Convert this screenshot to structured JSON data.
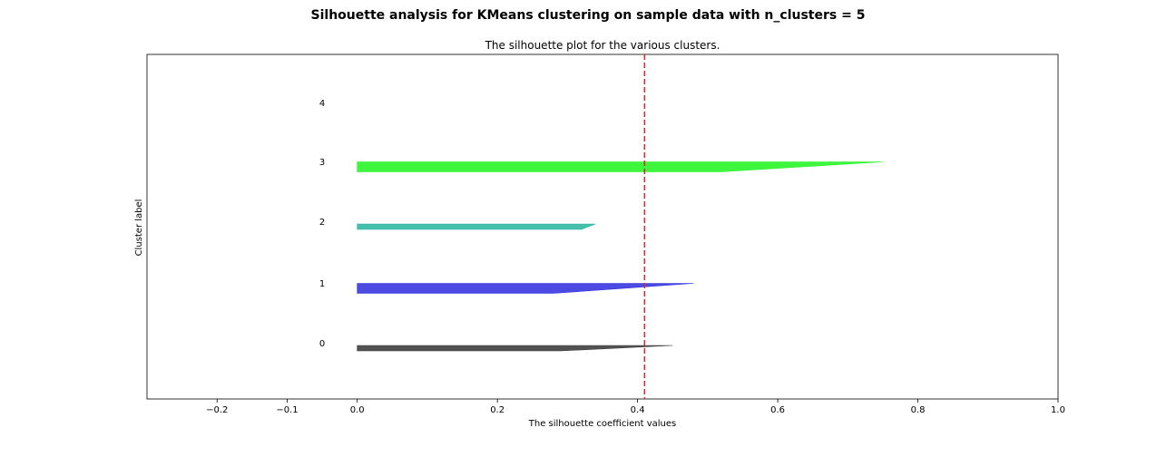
{
  "suptitle": "Silhouette analysis for KMeans clustering on sample data with n_clusters = 5",
  "chart_data": {
    "type": "area",
    "title": "The silhouette plot for the various clusters.",
    "xlabel": "The silhouette coefficient values",
    "ylabel": "Cluster label",
    "xlim": [
      -0.3,
      1.0
    ],
    "xticks": [
      -0.2,
      -0.1,
      0.0,
      0.2,
      0.4,
      0.6,
      0.8,
      1.0
    ],
    "xtick_labels": [
      "−0.2",
      "−0.1",
      "0.0",
      "0.2",
      "0.4",
      "0.6",
      "0.8",
      "1.0"
    ],
    "average_silhouette_score": 0.41,
    "average_line_color": "#d62728",
    "clusters": [
      {
        "label": "0",
        "color": "#3a3a3a",
        "max_value": 0.45,
        "knee_value": 0.29
      },
      {
        "label": "1",
        "color": "#3232e0",
        "max_value": 0.48,
        "knee_value": 0.28
      },
      {
        "label": "2",
        "color": "#2ab6a0",
        "max_value": 0.34,
        "knee_value": 0.32
      },
      {
        "label": "3",
        "color": "#22f522",
        "max_value": 0.75,
        "knee_value": 0.52
      },
      {
        "label": "4",
        "color": "#d9d9d9",
        "max_value": null,
        "knee_value": null
      }
    ],
    "grid": false
  }
}
